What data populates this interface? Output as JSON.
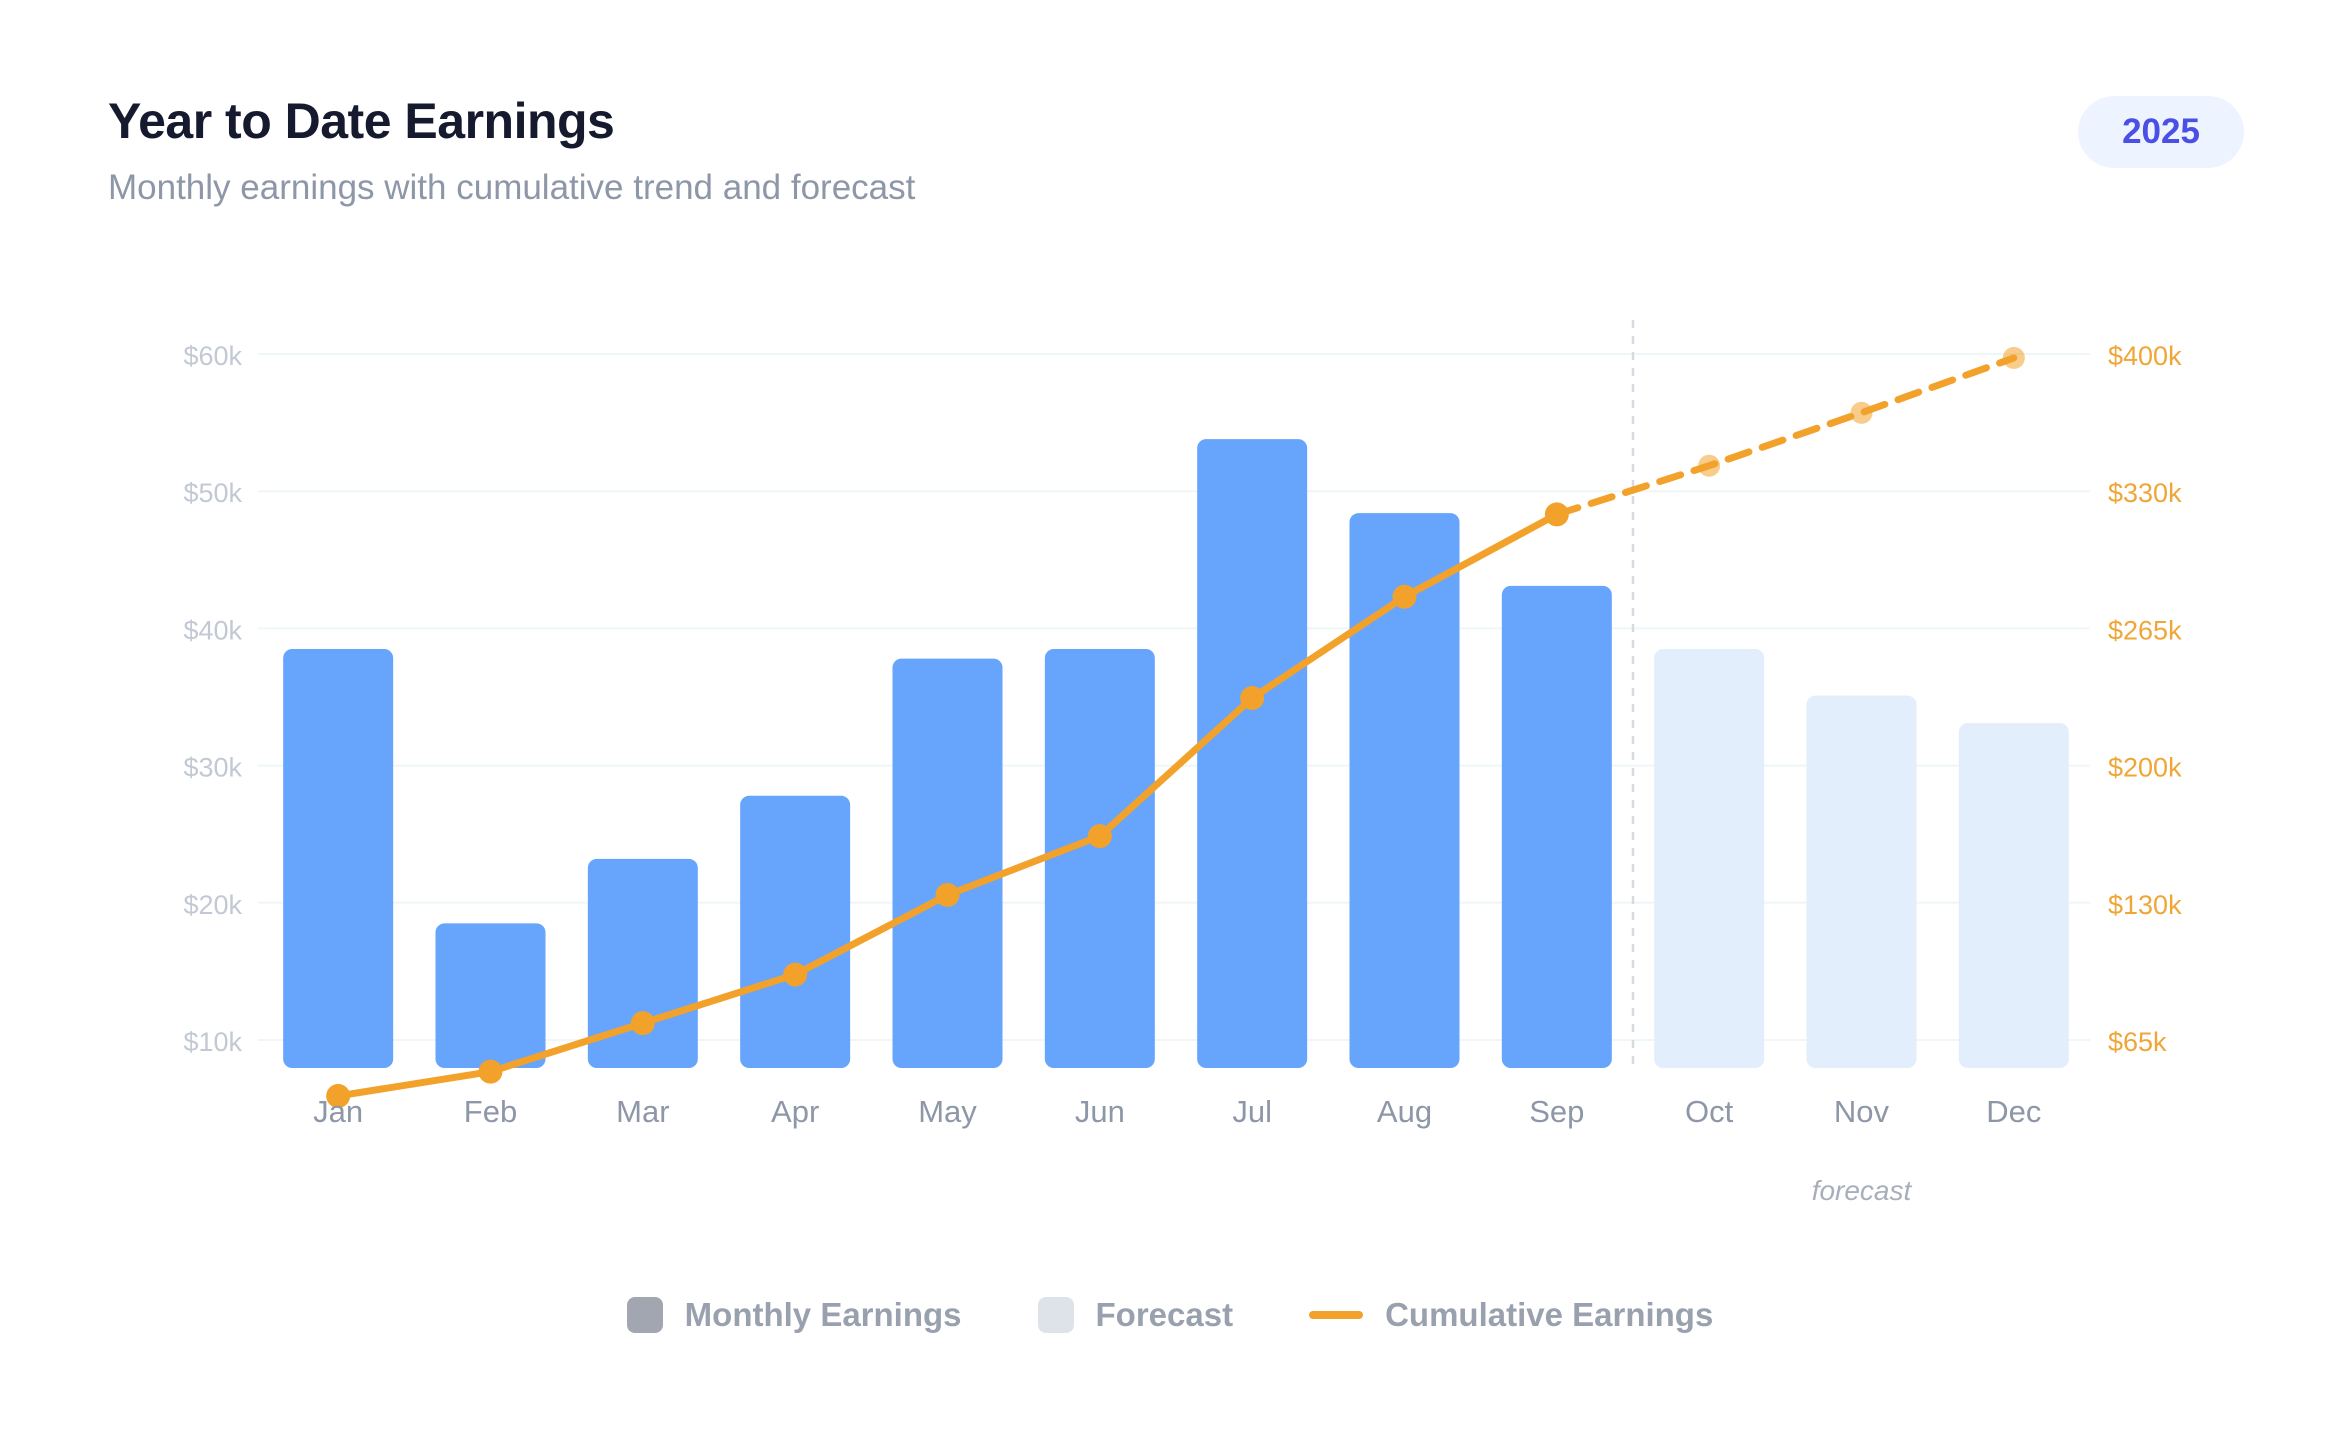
{
  "header": {
    "title": "Year to Date Earnings",
    "subtitle": "Monthly earnings with cumulative trend and forecast",
    "year_badge": "2025"
  },
  "colors": {
    "bar_actual": "#66a5fb",
    "bar_forecast": "#e3eefc",
    "cumulative_line": "#f2a22a",
    "left_tick": "#c3c9d4",
    "right_tick": "#f0a637",
    "month_label": "#8e97a8",
    "gridline": "#eef7f6",
    "forecast_divider": "#d5dbe3",
    "legend_monthly": "#a2a6b0",
    "legend_forecast": "#dee3ea"
  },
  "chart_data": {
    "type": "bar",
    "categories": [
      "Jan",
      "Feb",
      "Mar",
      "Apr",
      "May",
      "Jun",
      "Jul",
      "Aug",
      "Sep",
      "Oct",
      "Nov",
      "Dec"
    ],
    "series": [
      {
        "name": "Monthly Earnings",
        "type": "bar",
        "axis": "left",
        "values": [
          38500,
          18500,
          23200,
          27800,
          37800,
          38500,
          53800,
          48400,
          43100,
          null,
          null,
          null
        ]
      },
      {
        "name": "Forecast",
        "type": "bar",
        "axis": "left",
        "values": [
          null,
          null,
          null,
          null,
          null,
          null,
          null,
          null,
          null,
          38500,
          35100,
          33100
        ]
      },
      {
        "name": "Cumulative Earnings",
        "type": "line",
        "axis": "right",
        "values": [
          38500,
          50000,
          73000,
          96000,
          134000,
          164000,
          232000,
          280000,
          319000,
          343000,
          370000,
          398000
        ],
        "forecast_from_index": 9
      }
    ],
    "y_left": {
      "ticks": [
        10000,
        20000,
        30000,
        40000,
        50000,
        60000
      ],
      "tick_labels": [
        "$10k",
        "$20k",
        "$30k",
        "$40k",
        "$50k",
        "$60k"
      ]
    },
    "y_right": {
      "ticks": [
        65000,
        130000,
        200000,
        265000,
        330000,
        400000
      ],
      "tick_labels": [
        "$65k",
        "$130k",
        "$200k",
        "$265k",
        "$330k",
        "$400k"
      ]
    },
    "forecast_label": "forecast",
    "grid": true,
    "legend_position": "bottom"
  },
  "legend": {
    "items": [
      {
        "label": "Monthly Earnings"
      },
      {
        "label": "Forecast"
      },
      {
        "label": "Cumulative Earnings"
      }
    ]
  }
}
